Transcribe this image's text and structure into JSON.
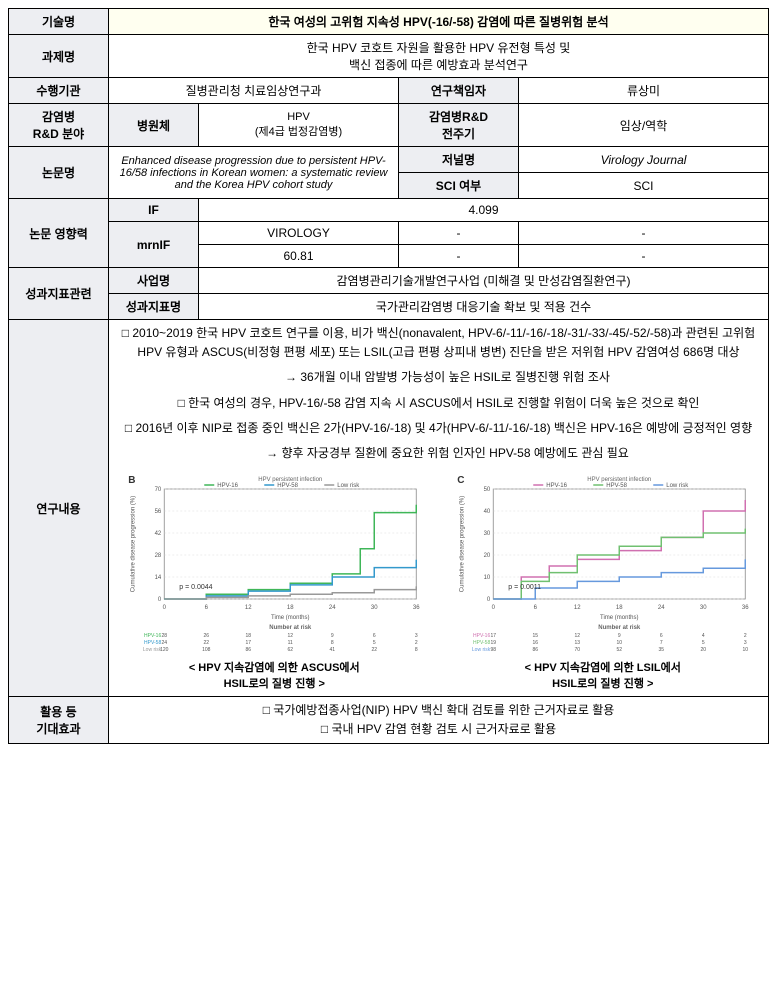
{
  "labels": {
    "tech_name": "기술명",
    "project_name": "과제명",
    "institution": "수행기관",
    "pi": "연구책임자",
    "rnd_field": "감염병\nR&D 분야",
    "pathogen": "병원체",
    "rnd_cycle": "감염병R&D\n전주기",
    "paper_name": "논문명",
    "journal": "저널명",
    "sci": "SCI 여부",
    "impact": "논문 영향력",
    "if": "IF",
    "mrnif": "mrnIF",
    "perf": "성과지표관련",
    "biz_name": "사업명",
    "perf_name": "성과지표명",
    "content": "연구내용",
    "effect": "활용 등\n기대효과"
  },
  "values": {
    "tech_name": "한국 여성의 고위험 지속성 HPV(-16/-58) 감염에 따른 질병위험 분석",
    "project_name": "한국 HPV 코호트 자원을 활용한 HPV 유전형 특성 및\n백신 접종에 따른 예방효과 분석연구",
    "institution": "질병관리청 치료임상연구과",
    "pi": "류상미",
    "pathogen": "HPV\n(제4급 법정감염병)",
    "rnd_cycle": "임상/역학",
    "paper_name": "Enhanced disease progression due to persistent HPV-16/58 infections in Korean women: a systematic review and the Korea HPV cohort study",
    "journal": "Virology Journal",
    "sci": "SCI",
    "if": "4.099",
    "mrnif_cat": "VIROLOGY",
    "mrnif_val": "60.81",
    "dash": "-",
    "biz_name": "감염병관리기술개발연구사업 (미해결 및 만성감염질환연구)",
    "perf_name": "국가관리감염병 대응기술 확보 및 적용 건수"
  },
  "content": {
    "item1": "□ 2010~2019 한국 HPV 코호트 연구를 이용, 비가 백신(nonavalent, HPV-6/-11/-16/-18/-31/-33/-45/-52/-58)과 관련된 고위험 HPV 유형과 ASCUS(비정형 편평 세포) 또는 LSIL(고급 편평 상피내 병변) 진단을 받은 저위험 HPV 감염여성 686명 대상",
    "item1_arrow": "→ 36개월 이내 암발병 가능성이 높은 HSIL로 질병진행 위험 조사",
    "item2": "□ 한국 여성의 경우, HPV-16/-58 감염 지속 시 ASCUS에서 HSIL로 진행할 위험이 더욱 높은 것으로 확인",
    "item3": "□ 2016년 이후 NIP로 접종 중인 백신은 2가(HPV-16/-18) 및 4가(HPV-6/-11/-16/-18) 백신은 HPV-16은 예방에 긍정적인 영향",
    "item3_arrow": "→ 향후 자궁경부 질환에 중요한 위험 인자인 HPV-58 예방에도 관심 필요"
  },
  "effect": {
    "item1": "□ 국가예방접종사업(NIP) HPV 백신 확대 검토를 위한 근거자료로 활용",
    "item2": "□ 국내 HPV 감염 현황 검토 시 근거자료로 활용"
  },
  "chart1": {
    "panel_label": "B",
    "legend_title": "HPV persistent infection",
    "legend": [
      "HPV-16",
      "HPV-58",
      "Low risk"
    ],
    "colors": [
      "#3fb658",
      "#3399cc",
      "#999999"
    ],
    "xlabel": "Time (months)",
    "ylabel": "Cumulative disease progression (%)",
    "series": [
      {
        "color": "#3fb658",
        "points": [
          [
            0,
            0
          ],
          [
            6,
            3
          ],
          [
            12,
            6
          ],
          [
            18,
            10
          ],
          [
            24,
            16
          ],
          [
            28,
            32
          ],
          [
            30,
            55
          ],
          [
            36,
            60
          ]
        ]
      },
      {
        "color": "#3399cc",
        "points": [
          [
            0,
            0
          ],
          [
            6,
            2
          ],
          [
            12,
            5
          ],
          [
            18,
            9
          ],
          [
            24,
            14
          ],
          [
            30,
            20
          ],
          [
            36,
            25
          ]
        ]
      },
      {
        "color": "#999999",
        "points": [
          [
            0,
            0
          ],
          [
            6,
            1
          ],
          [
            12,
            2
          ],
          [
            18,
            3
          ],
          [
            24,
            4
          ],
          [
            30,
            6
          ],
          [
            36,
            8
          ]
        ]
      }
    ],
    "pvalue": "p = 0.0044",
    "xlim": [
      0,
      36
    ],
    "ylim": [
      0,
      70
    ],
    "risk_label": "Number at risk",
    "risk_times": [
      0,
      6,
      12,
      18,
      24,
      30,
      36
    ],
    "risk_rows": [
      {
        "color": "#3fb658",
        "label": "HPV-16",
        "vals": [
          28,
          26,
          18,
          12,
          9,
          6,
          3
        ]
      },
      {
        "color": "#3399cc",
        "label": "HPV-58",
        "vals": [
          24,
          22,
          17,
          11,
          8,
          5,
          2
        ]
      },
      {
        "color": "#999999",
        "label": "Low risk",
        "vals": [
          120,
          108,
          86,
          62,
          41,
          22,
          8
        ]
      }
    ],
    "caption": "< HPV 지속감염에 의한 ASCUS에서\nHSIL로의 질병 진행 >"
  },
  "chart2": {
    "panel_label": "C",
    "legend_title": "HPV persistent infection",
    "legend": [
      "HPV-16",
      "HPV-58",
      "Low risk"
    ],
    "colors": [
      "#d070b0",
      "#70c070",
      "#6699dd"
    ],
    "xlabel": "Time (months)",
    "ylabel": "Cumulative disease progression (%)",
    "series": [
      {
        "color": "#d070b0",
        "points": [
          [
            0,
            0
          ],
          [
            4,
            10
          ],
          [
            8,
            15
          ],
          [
            12,
            18
          ],
          [
            18,
            22
          ],
          [
            24,
            28
          ],
          [
            30,
            40
          ],
          [
            36,
            45
          ]
        ]
      },
      {
        "color": "#70c070",
        "points": [
          [
            0,
            0
          ],
          [
            4,
            8
          ],
          [
            8,
            12
          ],
          [
            12,
            20
          ],
          [
            18,
            24
          ],
          [
            24,
            28
          ],
          [
            30,
            30
          ],
          [
            36,
            32
          ]
        ]
      },
      {
        "color": "#6699dd",
        "points": [
          [
            0,
            0
          ],
          [
            6,
            5
          ],
          [
            12,
            8
          ],
          [
            18,
            10
          ],
          [
            24,
            12
          ],
          [
            30,
            14
          ],
          [
            36,
            18
          ]
        ]
      }
    ],
    "pvalue": "p = 0.0011",
    "xlim": [
      0,
      36
    ],
    "ylim": [
      0,
      50
    ],
    "risk_label": "Number at risk",
    "risk_times": [
      0,
      6,
      12,
      18,
      24,
      30,
      36
    ],
    "risk_rows": [
      {
        "color": "#d070b0",
        "label": "HPV-16",
        "vals": [
          17,
          15,
          12,
          9,
          6,
          4,
          2
        ]
      },
      {
        "color": "#70c070",
        "label": "HPV-58",
        "vals": [
          19,
          16,
          13,
          10,
          7,
          5,
          3
        ]
      },
      {
        "color": "#6699dd",
        "label": "Low risk",
        "vals": [
          98,
          86,
          70,
          52,
          35,
          20,
          10
        ]
      }
    ],
    "caption": "< HPV 지속감염에 의한 LSIL에서\nHSIL로의 질병 진행 >"
  },
  "style": {
    "label_bg": "#edeef2",
    "title_bg": "#fffff0",
    "border": "#000000",
    "grid_color": "#dddddd",
    "chart_border": "#888888"
  }
}
